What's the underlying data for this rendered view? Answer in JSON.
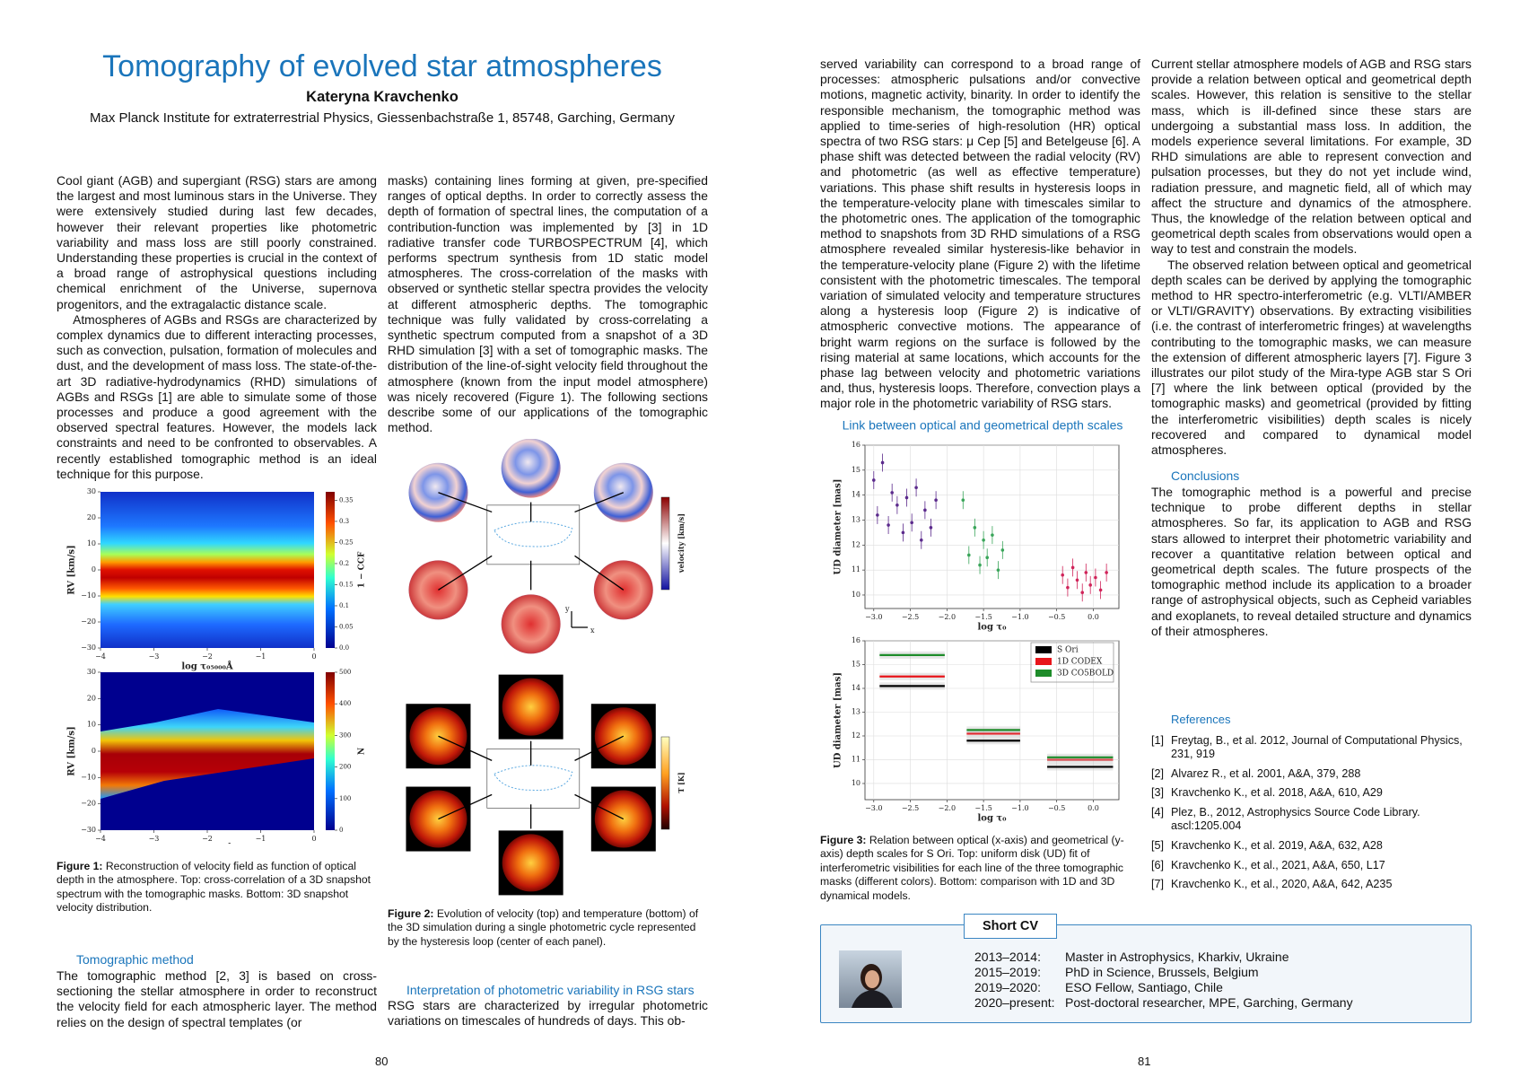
{
  "left_page": {
    "title": "Tomography of evolved star atmospheres",
    "author": "Kateryna Kravchenko",
    "affiliation": "Max Planck Institute for extraterrestrial Physics, Giessenbachstraße 1, 85748, Garching, Germany",
    "intro": [
      "Cool giant (AGB) and supergiant (RSG) stars are among the largest and most luminous stars in the Universe. They were extensively studied during last few decades, however their relevant properties like photometric variability and mass loss are still poorly constrained. Understanding these properties is crucial in the context of a broad range of astrophysical questions including chemical enrichment of the Universe, supernova progenitors, and the extragalactic distance scale.",
      "Atmospheres of AGBs and RSGs are characterized by complex dynamics due to different interacting processes, such as convection, pulsation, formation of molecules and dust, and the development of mass loss. The state-of-the-art 3D radiative-hydrodynamics (RHD) simulations of AGBs and RSGs [1] are able to simulate some of those processes and produce a good agreement with the observed spectral features. However, the models lack constraints and need to be confronted to observables. A recently established tomographic method is an ideal technique for this purpose."
    ],
    "column2_text": "masks) containing lines forming at given, pre-specified ranges of optical depths. In order to correctly assess the depth of formation of spectral lines, the computation of a contribution-function was implemented by [3] in 1D radiative transfer code TURBOSPECTRUM [4], which performs spectrum synthesis from 1D static model atmospheres. The cross-correlation of the masks with observed or synthetic stellar spectra provides the velocity at different atmospheric depths. The tomographic technique was fully validated by cross-correlating a synthetic spectrum computed from a snapshot of a 3D RHD simulation [3] with a set of tomographic masks. The distribution of the line-of-sight velocity field throughout the atmosphere (known from the input model atmosphere) was nicely recovered (Figure 1). The following sections describe some of our applications of the tomographic method.",
    "figure1": {
      "top": {
        "xlim": [
          -4,
          0
        ],
        "ylim": [
          -30,
          30
        ],
        "xticks": [
          {
            "value": -4,
            "label": "−4"
          },
          {
            "value": -3,
            "label": "−3"
          },
          {
            "value": -2,
            "label": "−2"
          },
          {
            "value": -1,
            "label": "−1"
          },
          0
        ],
        "yticks": [
          30,
          20,
          10,
          0,
          {
            "value": -10,
            "label": "−10"
          },
          {
            "value": -20,
            "label": "−20"
          },
          {
            "value": -30,
            "label": "−30"
          }
        ],
        "xlabel": "log τ₀₅₀₀₀Å",
        "ylabel": "RV [km/s]",
        "colorbar": {
          "lim": [
            0,
            0.37
          ],
          "ticks": [
            0.35,
            0.3,
            0.25,
            0.2,
            0.15,
            0.1,
            0.05,
            {
              "value": 0,
              "label": "0.0"
            }
          ],
          "label": "1 − CCF"
        }
      },
      "bottom": {
        "xlim": [
          -4,
          0
        ],
        "ylim": [
          -30,
          30
        ],
        "xticks": [
          {
            "value": -4,
            "label": "−4"
          },
          {
            "value": -3,
            "label": "−3"
          },
          {
            "value": -2,
            "label": "−2"
          },
          {
            "value": -1,
            "label": "−1"
          },
          0
        ],
        "yticks": [
          30,
          20,
          10,
          0,
          {
            "value": -10,
            "label": "−10"
          },
          {
            "value": -20,
            "label": "−20"
          },
          {
            "value": -30,
            "label": "−30"
          }
        ],
        "xlabel": "log τ₀₅₀₀₀Å",
        "ylabel": "RV [km/s]",
        "colorbar": {
          "lim": [
            0,
            500
          ],
          "ticks": [
            500,
            400,
            300,
            200,
            100,
            0
          ],
          "label": "N"
        }
      }
    },
    "figure1_caption": {
      "label": "Figure 1:",
      "text": "Reconstruction of velocity field as function of optical depth in the atmosphere. Top: cross-correlation of a 3D snapshot spectrum with the tomographic masks. Bottom: 3D snapshot velocity distribution."
    },
    "section_tomographic": {
      "heading": "Tomographic method",
      "text": "The tomographic method [2, 3] is based on cross-sectioning the stellar atmosphere in order to reconstruct the velocity field for each atmospheric layer. The method relies on the design of spectral templates (or"
    },
    "figure2": {
      "colorbar_top_label": "velocity [km/s]",
      "colorbar_bottom_label": "T [K]",
      "axis_x": "x",
      "axis_y": "y"
    },
    "figure2_caption": {
      "label": "Figure 2:",
      "text": "Evolution of velocity (top) and temperature (bottom) of the 3D simulation during a single photometric cycle represented by the hysteresis loop (center of each panel)."
    },
    "section_interpretation": {
      "heading": "Interpretation of photometric variability in RSG stars",
      "text": "RSG stars are characterized by irregular photometric variations on timescales of hundreds of days. This ob-"
    },
    "page_number": "80"
  },
  "right_page": {
    "column1_text": "served variability can correspond to a broad range of processes: atmospheric pulsations and/or convective motions, magnetic activity, binarity. In order to identify the responsible mechanism, the tomographic method was applied to time-series of high-resolution (HR) optical spectra of two RSG stars: μ Cep [5] and Betelgeuse [6]. A phase shift was detected between the radial velocity (RV) and photometric (as well as effective temperature) variations. This phase shift results in hysteresis loops in the temperature-velocity plane with timescales similar to the photometric ones. The application of the tomographic method to snapshots from 3D RHD simulations of a RSG atmosphere revealed similar hysteresis-like behavior in the temperature-velocity plane (Figure 2) with the lifetime consistent with the photometric timescales. The temporal variation of simulated velocity and temperature structures along a hysteresis loop (Figure 2) is indicative of atmospheric convective motions. The appearance of bright warm regions on the surface is followed by the rising material at same locations, which accounts for the phase lag between velocity and photometric variations and, thus, hysteresis loops. Therefore, convection plays a major role in the photometric variability of RSG stars.",
    "figure3": {
      "title": "Link between optical and geometrical depth scales",
      "top": {
        "xlim": [
          -3.12,
          0.35
        ],
        "ylim": [
          9.46,
          16
        ],
        "xticks": [
          {
            "value": -3,
            "label": "−3.0"
          },
          {
            "value": -2.5,
            "label": "−2.5"
          },
          {
            "value": -2,
            "label": "−2.0"
          },
          {
            "value": -1.5,
            "label": "−1.5"
          },
          {
            "value": -1,
            "label": "−1.0"
          },
          {
            "value": -0.5,
            "label": "−0.5"
          },
          {
            "value": 0,
            "label": "0.0"
          }
        ],
        "yticks": [
          16,
          15,
          14,
          13,
          12,
          11,
          10
        ],
        "xlabel": "log τ₀",
        "ylabel": "UD diameter [mas]",
        "series": [
          {
            "color": "#5b2a8c",
            "x": [
              -3.0,
              -2.95,
              -2.88,
              -2.8,
              -2.75,
              -2.68,
              -2.6,
              -2.55,
              -2.48,
              -2.42,
              -2.35,
              -2.3,
              -2.22,
              -2.15
            ],
            "y": [
              14.6,
              13.2,
              15.3,
              12.8,
              14.1,
              13.6,
              12.5,
              13.9,
              12.9,
              14.3,
              12.2,
              13.4,
              12.7,
              13.8
            ]
          },
          {
            "color": "#3aa55a",
            "x": [
              -1.78,
              -1.7,
              -1.62,
              -1.55,
              -1.5,
              -1.45,
              -1.38,
              -1.3,
              -1.24
            ],
            "y": [
              13.8,
              11.6,
              12.7,
              11.2,
              12.2,
              11.5,
              12.4,
              11.0,
              11.8
            ]
          },
          {
            "color": "#d0245a",
            "x": [
              -0.42,
              -0.35,
              -0.28,
              -0.22,
              -0.15,
              -0.1,
              -0.04,
              0.03,
              0.1,
              0.18
            ],
            "y": [
              10.8,
              10.3,
              11.1,
              10.6,
              10.1,
              10.9,
              10.4,
              10.7,
              10.2,
              10.9
            ]
          }
        ]
      },
      "bottom": {
        "xlim": [
          -3.12,
          0.35
        ],
        "ylim": [
          9.32,
          16
        ],
        "xticks": [
          {
            "value": -3,
            "label": "−3.0"
          },
          {
            "value": -2.5,
            "label": "−2.5"
          },
          {
            "value": -2,
            "label": "−2.0"
          },
          {
            "value": -1.5,
            "label": "−1.5"
          },
          {
            "value": -1,
            "label": "−1.0"
          },
          {
            "value": -0.5,
            "label": "−0.5"
          },
          {
            "value": 0,
            "label": "0.0"
          }
        ],
        "yticks": [
          16,
          15,
          14,
          13,
          12,
          11,
          10
        ],
        "xlabel": "log τ₀",
        "ylabel": "UD diameter [mas]",
        "x_ranges": [
          [
            -2.92,
            -2.03
          ],
          [
            -1.73,
            -1.0
          ],
          [
            -0.63,
            0.27
          ]
        ],
        "series": [
          {
            "name": "S Ori",
            "color": "#000000",
            "values": [
              14.1,
              11.8,
              10.7
            ]
          },
          {
            "name": "1D CODEX",
            "color": "#e8151b",
            "values": [
              14.5,
              12.1,
              11.0
            ]
          },
          {
            "name": "3D CO5BOLD",
            "color": "#1e8c2a",
            "values": [
              15.4,
              12.25,
              11.1
            ]
          }
        ]
      }
    },
    "figure3_caption": {
      "label": "Figure 3:",
      "text": "Relation between optical (x-axis) and geometrical (y-axis) depth scales for S Ori. Top: uniform disk (UD) fit of interferometric visibilities for each line of the three tomographic masks (different colors). Bottom: comparison with 1D and 3D dynamical models."
    },
    "column2_text": [
      "Current stellar atmosphere models of AGB and RSG stars provide a relation between optical and geometrical depth scales. However, this relation is sensitive to the stellar mass, which is ill-defined since these stars are undergoing a substantial mass loss. In addition, the models experience several limitations. For example, 3D RHD simulations are able to represent convection and pulsation processes, but they do not yet include wind, radiation pressure, and magnetic field, all of which may affect the structure and dynamics of the atmosphere. Thus, the knowledge of the relation between optical and geometrical depth scales from observations would open a way to test and constrain the models.",
      "The observed relation between optical and geometrical depth scales can be derived by applying the tomographic method to HR spectro-interferometric (e.g. VLTI/AMBER or VLTI/GRAVITY) observations. By extracting visibilities (i.e. the contrast of interferometric fringes) at wavelengths contributing to the tomographic masks, we can measure the extension of different atmospheric layers [7]. Figure 3 illustrates our pilot study of the Mira-type AGB star S Ori [7] where the link between optical (provided by the tomographic masks) and geometrical (provided by fitting the interferometric visibilities) depth scales is nicely recovered and compared to dynamical model atmospheres."
    ],
    "conclusions": {
      "heading": "Conclusions",
      "text": "The tomographic method is a powerful and precise technique to probe different depths in stellar atmospheres. So far, its application to AGB and RSG stars allowed to interpret their photometric variability and recover a quantitative relation between optical and geometrical depth scales. The future prospects of the tomographic method include its application to a broader range of astrophysical objects, such as Cepheid variables and exoplanets, to reveal detailed structure and dynamics of their atmospheres."
    },
    "references": {
      "heading": "References",
      "items": [
        {
          "label": "[1]",
          "text": "Freytag, B., et al. 2012, Journal of Computational Physics, 231, 919"
        },
        {
          "label": "[2]",
          "text": "Alvarez R., et al. 2001, A&A, 379, 288"
        },
        {
          "label": "[3]",
          "text": "Kravchenko K., et al. 2018, A&A, 610, A29"
        },
        {
          "label": "[4]",
          "text": "Plez, B., 2012, Astrophysics Source Code Library. ascl:1205.004"
        },
        {
          "label": "[5]",
          "text": "Kravchenko K., et al. 2019, A&A, 632, A28"
        },
        {
          "label": "[6]",
          "text": "Kravchenko K., et al., 2021, A&A, 650, L17"
        },
        {
          "label": "[7]",
          "text": "Kravchenko K., et al., 2020, A&A, 642, A235"
        }
      ]
    },
    "short_cv": {
      "title": "Short CV",
      "rows": [
        [
          "2013–2014:",
          "Master in Astrophysics, Kharkiv, Ukraine"
        ],
        [
          "2015–2019:",
          "PhD in Science, Brussels, Belgium"
        ],
        [
          "2019–2020:",
          "ESO Fellow, Santiago, Chile"
        ],
        [
          "2020–present:",
          "Post-doctoral researcher, MPE, Garching, Germany"
        ]
      ]
    },
    "page_number": "81"
  }
}
